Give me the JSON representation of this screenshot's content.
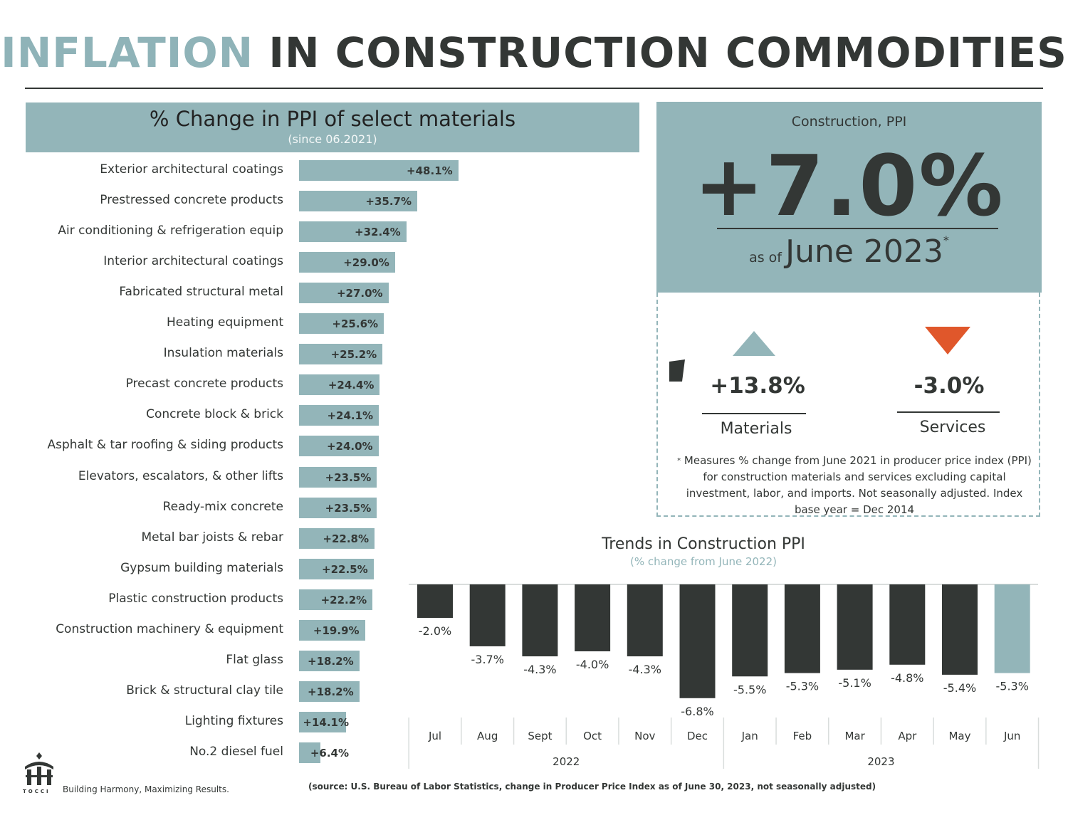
{
  "header": {
    "title_highlight": "INFLATION",
    "title_rest": "IN CONSTRUCTION COMMODITIES"
  },
  "left_panel": {
    "title": "% Change in PPI of select materials",
    "subtitle": "(since 06.2021)"
  },
  "kpi": {
    "label": "Construction, PPI",
    "value": "+7.0%",
    "as_of_prefix": "as of",
    "as_of_date": "June 2023",
    "asterisk": "*"
  },
  "breakdown": {
    "materials": {
      "value": "+13.8%",
      "label": "Materials",
      "direction": "up",
      "color": "#93b5b9"
    },
    "services": {
      "value": "-3.0%",
      "label": "Services",
      "direction": "down",
      "color": "#e0572b"
    },
    "footnote_marker": "*",
    "footnote": "Measures % change from June 2021 in producer price index (PPI) for construction materials and services excluding capital investment, labor, and imports. Not seasonally adjusted. Index base year = Dec 2014"
  },
  "trend": {
    "title": "Trends in Construction PPI",
    "subtitle": "(% change from June 2022)"
  },
  "footer": {
    "logo_text": "TOCCI",
    "tagline": "Building Harmony, Maximizing Results.",
    "source": "(source: U.S. Bureau of Labor Statistics, change in Producer Price Index as of June 30, 2023, not seasonally adjusted)"
  },
  "colors": {
    "accent": "#93b5b9",
    "dark": "#333735",
    "down": "#e0572b"
  },
  "chart_data": [
    {
      "type": "bar",
      "orientation": "horizontal",
      "title": "% Change in PPI of select materials",
      "subtitle": "(since 06.2021)",
      "categories": [
        "Exterior architectural coatings",
        "Prestressed concrete products",
        "Air conditioning & refrigeration equip",
        "Interior architectural coatings",
        "Fabricated structural metal",
        "Heating equipment",
        "Insulation materials",
        "Precast concrete products",
        "Concrete block & brick",
        "Asphalt & tar roofing & siding products",
        "Elevators, escalators, & other lifts",
        "Ready-mix concrete",
        "Metal bar joists & rebar",
        "Gypsum building materials",
        "Plastic construction products",
        "Construction machinery & equipment",
        "Flat glass",
        "Brick & structural clay tile",
        "Lighting fixtures",
        "No.2 diesel fuel"
      ],
      "values": [
        48.1,
        35.7,
        32.4,
        29.0,
        27.0,
        25.6,
        25.2,
        24.4,
        24.1,
        24.0,
        23.5,
        23.5,
        22.8,
        22.5,
        22.2,
        19.9,
        18.2,
        18.2,
        14.1,
        6.4
      ],
      "labels": [
        "+48.1%",
        "+35.7%",
        "+32.4%",
        "+29.0%",
        "+27.0%",
        "+25.6%",
        "+25.2%",
        "+24.4%",
        "+24.1%",
        "+24.0%",
        "+23.5%",
        "+23.5%",
        "+22.8%",
        "+22.5%",
        "+22.2%",
        "+19.9%",
        "+18.2%",
        "+18.2%",
        "+14.1%",
        "+6.4%"
      ],
      "color": "#93b5b9"
    },
    {
      "type": "bar",
      "title": "Trends in Construction PPI",
      "subtitle": "(% change from June 2022)",
      "categories": [
        "Jul",
        "Aug",
        "Sept",
        "Oct",
        "Nov",
        "Dec",
        "Jan",
        "Feb",
        "Mar",
        "Apr",
        "May",
        "Jun"
      ],
      "values": [
        -2.0,
        -3.7,
        -4.3,
        -4.0,
        -4.3,
        -6.8,
        -5.5,
        -5.3,
        -5.1,
        -4.8,
        -5.4,
        -5.3
      ],
      "labels": [
        "-2.0%",
        "-3.7%",
        "-4.3%",
        "-4.0%",
        "-4.3%",
        "-6.8%",
        "-5.5%",
        "-5.3%",
        "-5.1%",
        "-4.8%",
        "-5.4%",
        "-5.3%"
      ],
      "year_groups": [
        {
          "label": "2022",
          "months": [
            "Jul",
            "Aug",
            "Sept",
            "Oct",
            "Nov",
            "Dec"
          ]
        },
        {
          "label": "2023",
          "months": [
            "Jan",
            "Feb",
            "Mar",
            "Apr",
            "May",
            "Jun"
          ]
        }
      ],
      "bar_color": "#333735",
      "highlight_color": "#93b5b9",
      "highlight_index": 11
    }
  ]
}
